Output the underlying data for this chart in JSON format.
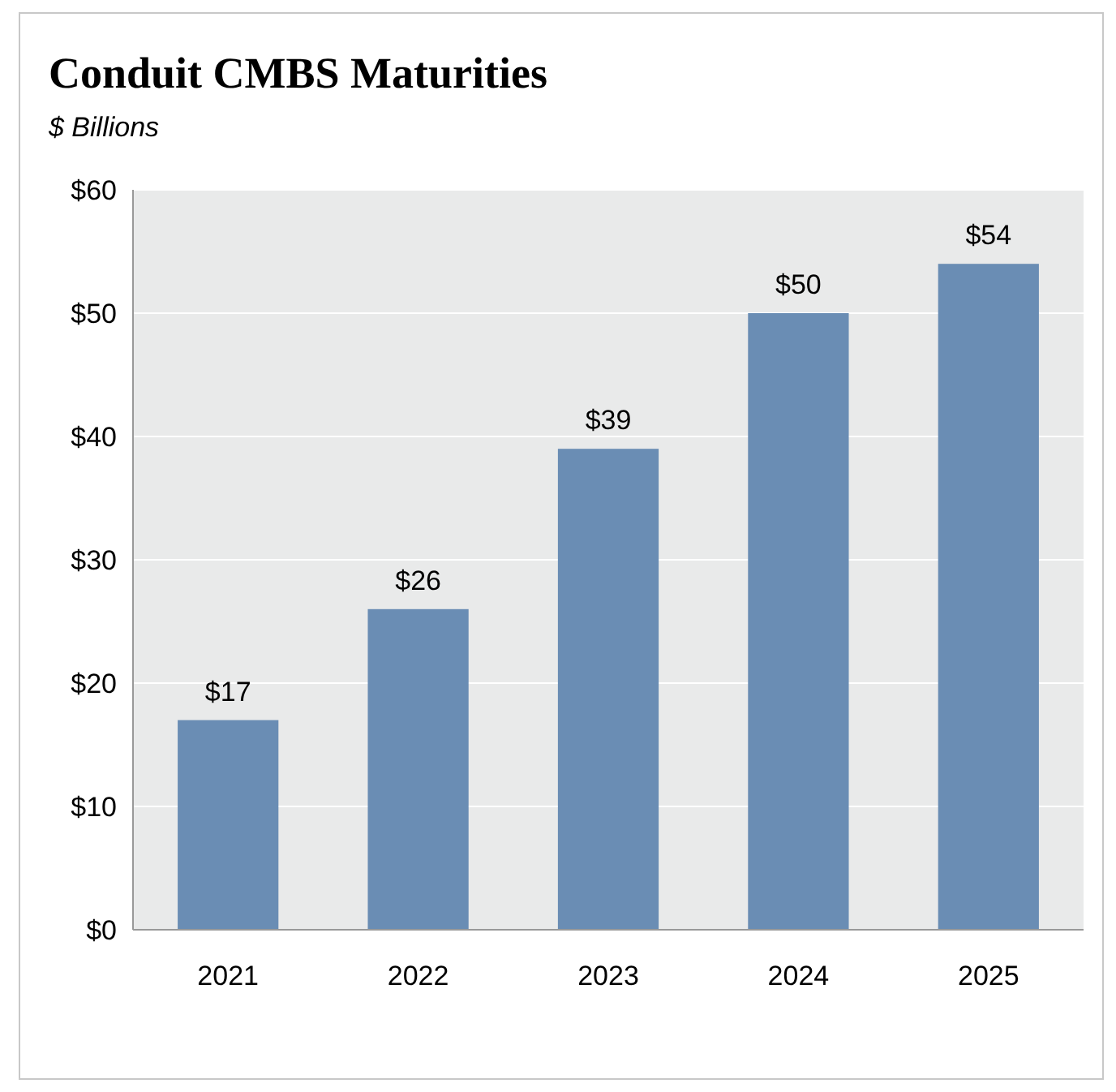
{
  "chart_data": {
    "type": "bar",
    "title": "Conduit CMBS Maturities",
    "subtitle": "$ Billions",
    "categories": [
      "2021",
      "2022",
      "2023",
      "2024",
      "2025"
    ],
    "values": [
      17,
      26,
      39,
      50,
      54
    ],
    "value_labels": [
      "$17",
      "$26",
      "$39",
      "$50",
      "$54"
    ],
    "color": "#6a8db4",
    "ylim": [
      0,
      60
    ],
    "yticks": [
      {
        "value": 0,
        "label": "$0"
      },
      {
        "value": 10,
        "label": "$10"
      },
      {
        "value": 20,
        "label": "$20"
      },
      {
        "value": 30,
        "label": "$30"
      },
      {
        "value": 40,
        "label": "$40"
      },
      {
        "value": 50,
        "label": "$50"
      },
      {
        "value": 60,
        "label": "$60"
      }
    ],
    "grid": "y"
  }
}
